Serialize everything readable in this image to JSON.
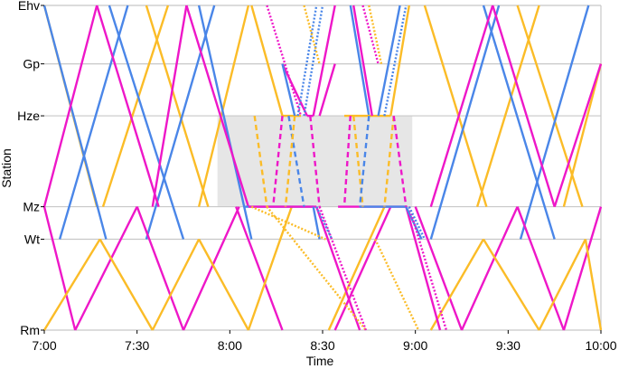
{
  "chart_data": {
    "type": "line",
    "xlabel": "Time",
    "ylabel": "Station",
    "x_ticks": [
      "7:00",
      "7:30",
      "8:00",
      "8:30",
      "9:00",
      "9:30",
      "10:00"
    ],
    "x_range": [
      "7:00",
      "10:00"
    ],
    "stations": [
      {
        "label": "Ehv",
        "position": 0
      },
      {
        "label": "Gp",
        "position": 0.18
      },
      {
        "label": "Hze",
        "position": 0.34
      },
      {
        "label": "Mz",
        "position": 0.62
      },
      {
        "label": "Wt",
        "position": 0.72
      },
      {
        "label": "Rm",
        "position": 1.0
      }
    ],
    "grid": true,
    "shaded_period": {
      "x": [
        "7:56",
        "8:59"
      ],
      "stations": [
        "Hze",
        "Mz"
      ]
    },
    "colors": {
      "blue": "#4a86e8",
      "orange": "#fbbc27",
      "magenta": "#ee17c8",
      "grid": "#c8c8c8",
      "shade": "#e6e6e6"
    },
    "series": [
      {
        "color": "orange",
        "style": "solid",
        "x": [
          "7:00",
          "7:17"
        ],
        "y": [
          "Ehv",
          "Mz"
        ]
      },
      {
        "color": "orange",
        "style": "solid",
        "x": [
          "7:19",
          "7:40"
        ],
        "y": [
          "Mz",
          "Ehv"
        ]
      },
      {
        "color": "orange",
        "style": "solid",
        "x": [
          "7:33",
          "7:53"
        ],
        "y": [
          "Ehv",
          "Mz"
        ]
      },
      {
        "color": "orange",
        "style": "solid",
        "x": [
          "7:50",
          "8:06"
        ],
        "y": [
          "Mz",
          "Ehv"
        ]
      },
      {
        "color": "orange",
        "style": "solid",
        "x": [
          "9:03",
          "9:23"
        ],
        "y": [
          "Ehv",
          "Mz"
        ]
      },
      {
        "color": "orange",
        "style": "solid",
        "x": [
          "9:20",
          "9:40"
        ],
        "y": [
          "Mz",
          "Ehv"
        ]
      },
      {
        "color": "orange",
        "style": "solid",
        "x": [
          "9:33",
          "9:54"
        ],
        "y": [
          "Ehv",
          "Mz"
        ]
      },
      {
        "color": "orange",
        "style": "solid",
        "x": [
          "9:48",
          "10:00"
        ],
        "y": [
          "Mz",
          "Gp"
        ]
      },
      {
        "color": "blue",
        "style": "solid",
        "x": [
          "7:00",
          "7:20"
        ],
        "y": [
          "Ehv",
          "Wt"
        ]
      },
      {
        "color": "blue",
        "style": "solid",
        "x": [
          "7:05",
          "7:27"
        ],
        "y": [
          "Wt",
          "Ehv"
        ]
      },
      {
        "color": "blue",
        "style": "solid",
        "x": [
          "7:21",
          "7:45"
        ],
        "y": [
          "Ehv",
          "Wt"
        ]
      },
      {
        "color": "blue",
        "style": "solid",
        "x": [
          "7:33",
          "7:55"
        ],
        "y": [
          "Wt",
          "Ehv"
        ]
      },
      {
        "color": "blue",
        "style": "solid",
        "x": [
          "7:50",
          "8:07"
        ],
        "y": [
          "Ehv",
          "Wt"
        ]
      },
      {
        "color": "blue",
        "style": "solid",
        "x": [
          "9:05",
          "9:27"
        ],
        "y": [
          "Wt",
          "Ehv"
        ]
      },
      {
        "color": "blue",
        "style": "solid",
        "x": [
          "9:22",
          "9:45"
        ],
        "y": [
          "Ehv",
          "Wt"
        ]
      },
      {
        "color": "blue",
        "style": "solid",
        "x": [
          "9:34",
          "9:56"
        ],
        "y": [
          "Wt",
          "Ehv"
        ]
      },
      {
        "color": "magenta",
        "style": "solid",
        "x": [
          "7:00",
          "7:17"
        ],
        "y": [
          "Mz",
          "Ehv"
        ]
      },
      {
        "color": "magenta",
        "style": "solid",
        "x": [
          "7:17",
          "7:37"
        ],
        "y": [
          "Ehv",
          "Mz"
        ]
      },
      {
        "color": "magenta",
        "style": "solid",
        "x": [
          "7:35",
          "7:46"
        ],
        "y": [
          "Mz",
          "Ehv"
        ]
      },
      {
        "color": "magenta",
        "style": "solid",
        "x": [
          "7:46",
          "8:06"
        ],
        "y": [
          "Ehv",
          "Mz"
        ]
      },
      {
        "color": "magenta",
        "style": "solid",
        "x": [
          "9:05",
          "9:25"
        ],
        "y": [
          "Mz",
          "Ehv"
        ]
      },
      {
        "color": "magenta",
        "style": "solid",
        "x": [
          "9:25",
          "9:45"
        ],
        "y": [
          "Ehv",
          "Mz"
        ]
      },
      {
        "color": "magenta",
        "style": "solid",
        "x": [
          "9:45",
          "10:00"
        ],
        "y": [
          "Mz",
          "Gp"
        ]
      },
      {
        "color": "magenta",
        "style": "solid",
        "x": [
          "7:00",
          "7:10"
        ],
        "y": [
          "Mz",
          "Rm"
        ]
      },
      {
        "color": "magenta",
        "style": "solid",
        "x": [
          "7:10",
          "7:30"
        ],
        "y": [
          "Rm",
          "Mz"
        ]
      },
      {
        "color": "magenta",
        "style": "solid",
        "x": [
          "7:30",
          "7:45"
        ],
        "y": [
          "Mz",
          "Rm"
        ]
      },
      {
        "color": "magenta",
        "style": "solid",
        "x": [
          "7:45",
          "8:03"
        ],
        "y": [
          "Rm",
          "Mz"
        ]
      },
      {
        "color": "magenta",
        "style": "solid",
        "x": [
          "8:02",
          "8:17"
        ],
        "y": [
          "Mz",
          "Rm"
        ]
      },
      {
        "color": "magenta",
        "style": "solid",
        "x": [
          "8:34",
          "8:52"
        ],
        "y": [
          "Rm",
          "Mz"
        ]
      },
      {
        "color": "magenta",
        "style": "solid",
        "x": [
          "9:00",
          "9:15"
        ],
        "y": [
          "Mz",
          "Rm"
        ]
      },
      {
        "color": "magenta",
        "style": "solid",
        "x": [
          "9:15",
          "9:33"
        ],
        "y": [
          "Rm",
          "Mz"
        ]
      },
      {
        "color": "magenta",
        "style": "solid",
        "x": [
          "9:33",
          "9:48"
        ],
        "y": [
          "Mz",
          "Rm"
        ]
      },
      {
        "color": "magenta",
        "style": "solid",
        "x": [
          "9:48",
          "10:00"
        ],
        "y": [
          "Rm",
          "Mz"
        ]
      },
      {
        "color": "orange",
        "style": "solid",
        "x": [
          "7:00",
          "7:18"
        ],
        "y": [
          "Rm",
          "Wt"
        ]
      },
      {
        "color": "orange",
        "style": "solid",
        "x": [
          "7:18",
          "7:35"
        ],
        "y": [
          "Wt",
          "Rm"
        ]
      },
      {
        "color": "orange",
        "style": "solid",
        "x": [
          "7:35",
          "7:50"
        ],
        "y": [
          "Rm",
          "Wt"
        ]
      },
      {
        "color": "orange",
        "style": "solid",
        "x": [
          "7:50",
          "8:06"
        ],
        "y": [
          "Wt",
          "Rm"
        ]
      },
      {
        "color": "orange",
        "style": "solid",
        "x": [
          "8:06",
          "8:20"
        ],
        "y": [
          "Rm",
          "Mz"
        ]
      },
      {
        "color": "orange",
        "style": "solid",
        "x": [
          "8:32",
          "8:50"
        ],
        "y": [
          "Rm",
          "Mz"
        ]
      },
      {
        "color": "orange",
        "style": "solid",
        "x": [
          "9:05",
          "9:22"
        ],
        "y": [
          "Rm",
          "Wt"
        ]
      },
      {
        "color": "orange",
        "style": "solid",
        "x": [
          "9:22",
          "9:40"
        ],
        "y": [
          "Wt",
          "Rm"
        ]
      },
      {
        "color": "orange",
        "style": "solid",
        "x": [
          "9:40",
          "9:55"
        ],
        "y": [
          "Rm",
          "Wt"
        ]
      },
      {
        "color": "orange",
        "style": "solid",
        "x": [
          "9:55",
          "10:00"
        ],
        "y": [
          "Wt",
          "Rm"
        ]
      },
      {
        "color": "magenta",
        "style": "solid",
        "x": [
          "8:17",
          "8:25"
        ],
        "y": [
          "Gp",
          "Hze"
        ]
      },
      {
        "color": "magenta",
        "style": "solid",
        "x": [
          "8:25",
          "8:27"
        ],
        "y": [
          "Hze",
          "Hze"
        ]
      },
      {
        "color": "magenta",
        "style": "solid",
        "x": [
          "8:27",
          "8:34"
        ],
        "y": [
          "Hze",
          "Ehv"
        ]
      },
      {
        "color": "orange",
        "style": "solid",
        "x": [
          "8:07",
          "8:17"
        ],
        "y": [
          "Ehv",
          "Hze"
        ]
      },
      {
        "color": "orange",
        "style": "solid",
        "x": [
          "8:17",
          "8:23"
        ],
        "y": [
          "Hze",
          "Hze"
        ]
      },
      {
        "color": "blue",
        "style": "solid",
        "x": [
          "8:17",
          "8:21"
        ],
        "y": [
          "Gp",
          "Hze"
        ]
      },
      {
        "color": "blue",
        "style": "solid",
        "x": [
          "8:39",
          "8:45"
        ],
        "y": [
          "Ehv",
          "Hze"
        ]
      },
      {
        "color": "orange",
        "style": "solid",
        "x": [
          "8:37",
          "8:52"
        ],
        "y": [
          "Hze",
          "Hze"
        ]
      },
      {
        "color": "orange",
        "style": "solid",
        "x": [
          "8:52",
          "8:58"
        ],
        "y": [
          "Hze",
          "Ehv"
        ]
      },
      {
        "color": "blue",
        "style": "solid",
        "x": [
          "8:48",
          "8:55"
        ],
        "y": [
          "Hze",
          "Ehv"
        ]
      },
      {
        "color": "magenta",
        "style": "solid",
        "x": [
          "8:29",
          "8:34"
        ],
        "y": [
          "Hze",
          "Gp"
        ]
      },
      {
        "color": "magenta",
        "style": "solid",
        "x": [
          "8:40",
          "8:46"
        ],
        "y": [
          "Ehv",
          "Hze"
        ]
      },
      {
        "color": "blue",
        "style": "solid",
        "x": [
          "8:05",
          "8:27"
        ],
        "y": [
          "Mz",
          "Mz"
        ]
      },
      {
        "color": "magenta",
        "style": "solid",
        "x": [
          "8:06",
          "8:28"
        ],
        "y": [
          "Mz",
          "Mz"
        ]
      },
      {
        "color": "magenta",
        "style": "solid",
        "x": [
          "8:35",
          "8:57"
        ],
        "y": [
          "Mz",
          "Mz"
        ]
      },
      {
        "color": "blue",
        "style": "solid",
        "x": [
          "8:42",
          "8:57"
        ],
        "y": [
          "Mz",
          "Mz"
        ]
      },
      {
        "color": "magenta",
        "style": "solid",
        "x": [
          "8:28",
          "8:42"
        ],
        "y": [
          "Mz",
          "Rm"
        ]
      },
      {
        "color": "blue",
        "style": "solid",
        "x": [
          "8:27",
          "8:29"
        ],
        "y": [
          "Mz",
          "Wt"
        ]
      },
      {
        "color": "magenta",
        "style": "solid",
        "x": [
          "8:57",
          "9:08"
        ],
        "y": [
          "Mz",
          "Rm"
        ]
      },
      {
        "color": "blue",
        "style": "solid",
        "x": [
          "8:57",
          "9:02"
        ],
        "y": [
          "Mz",
          "Wt"
        ]
      },
      {
        "color": "magenta",
        "style": "dotted",
        "x": [
          "8:12",
          "8:23"
        ],
        "y": [
          "Ehv",
          "Hze"
        ]
      },
      {
        "color": "blue",
        "style": "dotted",
        "x": [
          "8:22",
          "8:28"
        ],
        "y": [
          "Hze",
          "Ehv"
        ]
      },
      {
        "color": "blue",
        "style": "dotted",
        "x": [
          "8:24",
          "8:30"
        ],
        "y": [
          "Hze",
          "Ehv"
        ]
      },
      {
        "color": "orange",
        "style": "dotted",
        "x": [
          "8:24",
          "8:29"
        ],
        "y": [
          "Ehv",
          "Gp"
        ]
      },
      {
        "color": "magenta",
        "style": "dotted",
        "x": [
          "8:43",
          "8:48"
        ],
        "y": [
          "Ehv",
          "Gp"
        ]
      },
      {
        "color": "orange",
        "style": "dotted",
        "x": [
          "8:45",
          "8:49"
        ],
        "y": [
          "Ehv",
          "Gp"
        ]
      },
      {
        "color": "blue",
        "style": "dotted",
        "x": [
          "8:50",
          "8:57"
        ],
        "y": [
          "Hze",
          "Ehv"
        ]
      },
      {
        "color": "orange",
        "style": "dotted",
        "x": [
          "8:07",
          "8:31"
        ],
        "y": [
          "Mz",
          "Wt"
        ]
      },
      {
        "color": "orange",
        "style": "dotted",
        "x": [
          "8:12",
          "8:44"
        ],
        "y": [
          "Mz",
          "Rm"
        ]
      },
      {
        "color": "magenta",
        "style": "dotted",
        "x": [
          "8:29",
          "8:44"
        ],
        "y": [
          "Mz",
          "Rm"
        ]
      },
      {
        "color": "blue",
        "style": "dotted",
        "x": [
          "8:28",
          "8:33"
        ],
        "y": [
          "Mz",
          "Wt"
        ]
      },
      {
        "color": "orange",
        "style": "dotted",
        "x": [
          "8:47",
          "9:01"
        ],
        "y": [
          "Wt",
          "Rm"
        ]
      },
      {
        "color": "magenta",
        "style": "dotted",
        "x": [
          "8:58",
          "9:10"
        ],
        "y": [
          "Mz",
          "Rm"
        ]
      },
      {
        "color": "blue",
        "style": "dotted",
        "x": [
          "8:58",
          "9:03"
        ],
        "y": [
          "Mz",
          "Wt"
        ]
      },
      {
        "color": "orange",
        "style": "dashed",
        "x": [
          "8:08",
          "8:12"
        ],
        "y": [
          "Hze",
          "Mz"
        ]
      },
      {
        "color": "magenta",
        "style": "dashed",
        "x": [
          "8:17",
          "8:14"
        ],
        "y": [
          "Hze",
          "Mz"
        ]
      },
      {
        "color": "blue",
        "style": "dashed",
        "x": [
          "8:19",
          "8:24"
        ],
        "y": [
          "Hze",
          "Mz"
        ]
      },
      {
        "color": "orange",
        "style": "dashed",
        "x": [
          "8:21",
          "8:18"
        ],
        "y": [
          "Hze",
          "Mz"
        ]
      },
      {
        "color": "magenta",
        "style": "dashed",
        "x": [
          "8:26",
          "8:29"
        ],
        "y": [
          "Hze",
          "Mz"
        ]
      },
      {
        "color": "magenta",
        "style": "dashed",
        "x": [
          "8:39",
          "8:37"
        ],
        "y": [
          "Hze",
          "Mz"
        ]
      },
      {
        "color": "orange",
        "style": "dashed",
        "x": [
          "8:40",
          "8:43"
        ],
        "y": [
          "Hze",
          "Mz"
        ]
      },
      {
        "color": "blue",
        "style": "dashed",
        "x": [
          "8:45",
          "8:42"
        ],
        "y": [
          "Hze",
          "Mz"
        ]
      },
      {
        "color": "orange",
        "style": "dashed",
        "x": [
          "8:53",
          "8:50"
        ],
        "y": [
          "Hze",
          "Mz"
        ]
      },
      {
        "color": "magenta",
        "style": "dashed",
        "x": [
          "8:53",
          "8:57"
        ],
        "y": [
          "Hze",
          "Mz"
        ]
      }
    ]
  }
}
